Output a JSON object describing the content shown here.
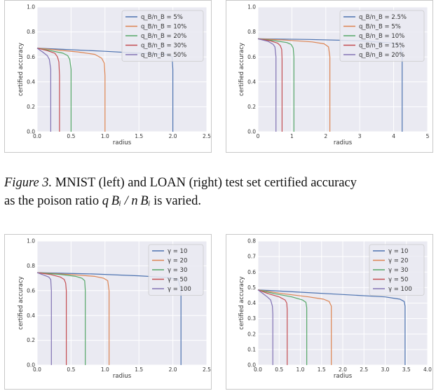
{
  "caption": {
    "label": "Figure 3.",
    "line1": " MNIST (left) and LOAN (right) test set certified accuracy",
    "line2_before": "as the poison ratio ",
    "math": "q Bᵢ / n Bᵢ",
    "line2_after": " is varied."
  },
  "colors": {
    "blue": "#4c72b0",
    "orange": "#dd8452",
    "green": "#55a868",
    "red": "#c44e52",
    "purple": "#8172b3",
    "background": "#eaeaf2",
    "grid": "#ffffff"
  },
  "chart_data": [
    {
      "type": "line",
      "xlabel": "radius",
      "ylabel": "certified accuracy",
      "xlim": [
        0,
        2.5
      ],
      "ylim": [
        0,
        1.0
      ],
      "xticks": [
        0.0,
        0.5,
        1.0,
        1.5,
        2.0,
        2.5
      ],
      "yticks": [
        0.0,
        0.2,
        0.4,
        0.6,
        0.8,
        1.0
      ],
      "grid": true,
      "legend_position": "top-right",
      "series": [
        {
          "name": "q_B/n_B = 5%",
          "color": "#4c72b0",
          "x": [
            0,
            0.4,
            1.0,
            1.5,
            1.9,
            1.99,
            2.0,
            2.0
          ],
          "y": [
            0.67,
            0.66,
            0.645,
            0.63,
            0.62,
            0.6,
            0.5,
            0
          ]
        },
        {
          "name": "q_B/n_B = 10%",
          "color": "#dd8452",
          "x": [
            0,
            0.3,
            0.6,
            0.85,
            0.95,
            0.99,
            1.0,
            1.0
          ],
          "y": [
            0.67,
            0.655,
            0.64,
            0.62,
            0.59,
            0.55,
            0.45,
            0
          ]
        },
        {
          "name": "q_B/n_B = 20%",
          "color": "#55a868",
          "x": [
            0,
            0.2,
            0.38,
            0.45,
            0.48,
            0.5,
            0.5
          ],
          "y": [
            0.67,
            0.65,
            0.63,
            0.61,
            0.58,
            0.5,
            0
          ]
        },
        {
          "name": "q_B/n_B = 30%",
          "color": "#c44e52",
          "x": [
            0,
            0.15,
            0.26,
            0.3,
            0.32,
            0.33,
            0.33
          ],
          "y": [
            0.67,
            0.65,
            0.63,
            0.6,
            0.56,
            0.45,
            0
          ]
        },
        {
          "name": "q_B/n_B = 50%",
          "color": "#8172b3",
          "x": [
            0,
            0.08,
            0.15,
            0.18,
            0.2,
            0.2
          ],
          "y": [
            0.67,
            0.64,
            0.61,
            0.58,
            0.5,
            0
          ]
        }
      ]
    },
    {
      "type": "line",
      "xlabel": "radius",
      "ylabel": "certified accuracy",
      "xlim": [
        0,
        5
      ],
      "ylim": [
        0,
        1.0
      ],
      "xticks": [
        0,
        1,
        2,
        3,
        4,
        5
      ],
      "yticks": [
        0.0,
        0.2,
        0.4,
        0.6,
        0.8,
        1.0
      ],
      "grid": true,
      "legend_position": "top-right",
      "series": [
        {
          "name": "q_B/n_B = 2.5%",
          "color": "#4c72b0",
          "x": [
            0,
            1.5,
            3.0,
            4.0,
            4.2,
            4.25,
            4.25
          ],
          "y": [
            0.745,
            0.74,
            0.73,
            0.71,
            0.68,
            0.6,
            0
          ]
        },
        {
          "name": "q_B/n_B = 5%",
          "color": "#dd8452",
          "x": [
            0,
            0.8,
            1.6,
            1.95,
            2.08,
            2.12,
            2.12
          ],
          "y": [
            0.745,
            0.735,
            0.72,
            0.705,
            0.68,
            0.6,
            0
          ]
        },
        {
          "name": "q_B/n_B = 10%",
          "color": "#55a868",
          "x": [
            0,
            0.5,
            0.85,
            0.98,
            1.04,
            1.06,
            1.06
          ],
          "y": [
            0.745,
            0.73,
            0.715,
            0.7,
            0.67,
            0.6,
            0
          ]
        },
        {
          "name": "q_B/n_B = 15%",
          "color": "#c44e52",
          "x": [
            0,
            0.35,
            0.58,
            0.66,
            0.7,
            0.71,
            0.71
          ],
          "y": [
            0.745,
            0.73,
            0.71,
            0.69,
            0.66,
            0.58,
            0
          ]
        },
        {
          "name": "q_B/n_B = 20%",
          "color": "#8172b3",
          "x": [
            0,
            0.3,
            0.45,
            0.5,
            0.53,
            0.53
          ],
          "y": [
            0.745,
            0.725,
            0.7,
            0.68,
            0.6,
            0
          ]
        }
      ]
    },
    {
      "type": "line",
      "xlabel": "radius",
      "ylabel": "certified accuracy",
      "xlim": [
        0,
        2.5
      ],
      "ylim": [
        0,
        1.0
      ],
      "xticks": [
        0.0,
        0.5,
        1.0,
        1.5,
        2.0,
        2.5
      ],
      "yticks": [
        0.0,
        0.2,
        0.4,
        0.6,
        0.8,
        1.0
      ],
      "grid": true,
      "legend_position": "top-right",
      "series": [
        {
          "name": "γ = 10",
          "color": "#4c72b0",
          "x": [
            0,
            0.8,
            1.5,
            1.95,
            2.08,
            2.12,
            2.12
          ],
          "y": [
            0.745,
            0.735,
            0.72,
            0.705,
            0.69,
            0.6,
            0
          ]
        },
        {
          "name": "γ = 20",
          "color": "#dd8452",
          "x": [
            0,
            0.5,
            0.85,
            0.98,
            1.04,
            1.06,
            1.06
          ],
          "y": [
            0.745,
            0.73,
            0.715,
            0.7,
            0.68,
            0.6,
            0
          ]
        },
        {
          "name": "γ = 30",
          "color": "#55a868",
          "x": [
            0,
            0.35,
            0.57,
            0.66,
            0.7,
            0.71,
            0.71
          ],
          "y": [
            0.745,
            0.73,
            0.715,
            0.7,
            0.68,
            0.6,
            0
          ]
        },
        {
          "name": "γ = 50",
          "color": "#c44e52",
          "x": [
            0,
            0.2,
            0.34,
            0.4,
            0.42,
            0.43,
            0.43
          ],
          "y": [
            0.745,
            0.73,
            0.71,
            0.69,
            0.66,
            0.6,
            0
          ]
        },
        {
          "name": "γ = 100",
          "color": "#8172b3",
          "x": [
            0,
            0.1,
            0.17,
            0.2,
            0.21,
            0.21
          ],
          "y": [
            0.745,
            0.725,
            0.71,
            0.69,
            0.6,
            0
          ]
        }
      ]
    },
    {
      "type": "line",
      "xlabel": "radius",
      "ylabel": "certified accuracy",
      "xlim": [
        0,
        4.0
      ],
      "ylim": [
        0,
        0.8
      ],
      "xticks": [
        0.0,
        0.5,
        1.0,
        1.5,
        2.0,
        2.5,
        3.0,
        3.5,
        4.0
      ],
      "yticks": [
        0.0,
        0.1,
        0.2,
        0.3,
        0.4,
        0.5,
        0.6,
        0.7,
        0.8
      ],
      "grid": true,
      "legend_position": "top-right",
      "series": [
        {
          "name": "γ = 10",
          "color": "#4c72b0",
          "x": [
            0,
            1.0,
            2.0,
            3.0,
            3.35,
            3.45,
            3.47,
            3.47
          ],
          "y": [
            0.485,
            0.47,
            0.455,
            0.44,
            0.425,
            0.41,
            0.38,
            0
          ]
        },
        {
          "name": "γ = 20",
          "color": "#dd8452",
          "x": [
            0,
            0.6,
            1.2,
            1.55,
            1.68,
            1.73,
            1.73
          ],
          "y": [
            0.485,
            0.46,
            0.44,
            0.425,
            0.41,
            0.38,
            0
          ]
        },
        {
          "name": "γ = 30",
          "color": "#55a868",
          "x": [
            0,
            0.4,
            0.8,
            1.05,
            1.13,
            1.15,
            1.15
          ],
          "y": [
            0.485,
            0.46,
            0.44,
            0.42,
            0.405,
            0.37,
            0
          ]
        },
        {
          "name": "γ = 50",
          "color": "#c44e52",
          "x": [
            0,
            0.25,
            0.5,
            0.64,
            0.68,
            0.69,
            0.69
          ],
          "y": [
            0.485,
            0.46,
            0.44,
            0.42,
            0.4,
            0.36,
            0
          ]
        },
        {
          "name": "γ = 100",
          "color": "#8172b3",
          "x": [
            0,
            0.1,
            0.22,
            0.3,
            0.34,
            0.35,
            0.35
          ],
          "y": [
            0.485,
            0.465,
            0.44,
            0.42,
            0.38,
            0.33,
            0
          ]
        }
      ]
    }
  ]
}
